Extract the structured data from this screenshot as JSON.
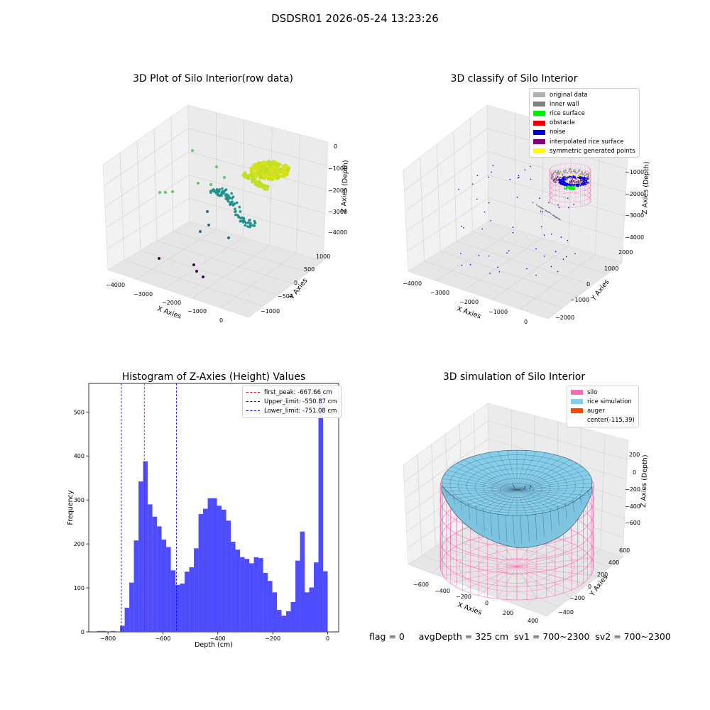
{
  "suptitle": "DSDSR01 2026-05-24 13:23:26",
  "footer": "flag = 0     avgDepth = 325 cm  sv1 = 700~2300  sv2 = 700~2300",
  "chart_data": [
    {
      "type": "scatter",
      "title": "3D Plot of Silo Interior(row data)",
      "xlabel": "X Axies",
      "ylabel": "Y Axies",
      "zlabel": "Z Axies (Depth)",
      "x_ticks": [
        "−4000",
        "−3000",
        "−2000",
        "−1000",
        "0"
      ],
      "y_ticks": [
        "−1000",
        "−500",
        "0",
        "500",
        "1000"
      ],
      "z_ticks": [
        "−4000",
        "−3000",
        "−2000",
        "−1000",
        "0"
      ],
      "colormap": "viridis"
    },
    {
      "type": "scatter",
      "title": "3D classify of Silo Interior",
      "xlabel": "X Axies",
      "ylabel": "Y Axies",
      "zlabel": "Z Axies (Depth)",
      "x_ticks": [
        "−4000",
        "−3000",
        "−2000",
        "−1000",
        "0"
      ],
      "y_ticks": [
        "−2000",
        "−1000",
        "0",
        "1000",
        "2000"
      ],
      "z_ticks": [
        "−4000",
        "−3000",
        "−2000",
        "−1000",
        "0"
      ],
      "legend": [
        {
          "label": "original data",
          "color": "#b0b0b0"
        },
        {
          "label": "inner wall",
          "color": "#808080"
        },
        {
          "label": "rice surface",
          "color": "#00ee00"
        },
        {
          "label": "obstacle",
          "color": "#ee0000"
        },
        {
          "label": "noise",
          "color": "#0000dd"
        },
        {
          "label": "interpolated rice surface",
          "color": "#800080"
        },
        {
          "label": "symmetric generated points",
          "color": "#ffff00"
        }
      ]
    },
    {
      "type": "bar",
      "title": "Histogram of Z-Axies (Height) Values",
      "xlabel": "Depth (cm)",
      "ylabel": "Frequency",
      "xlim": [
        -870,
        40
      ],
      "ylim": [
        0,
        565
      ],
      "x_ticks": [
        {
          "v": -800,
          "label": "−800"
        },
        {
          "v": -600,
          "label": "−600"
        },
        {
          "v": -400,
          "label": "−400"
        },
        {
          "v": -200,
          "label": "−200"
        },
        {
          "v": 0,
          "label": "0"
        }
      ],
      "y_ticks": [
        {
          "v": 0,
          "label": "0"
        },
        {
          "v": 100,
          "label": "100"
        },
        {
          "v": 200,
          "label": "200"
        },
        {
          "v": 300,
          "label": "300"
        },
        {
          "v": 400,
          "label": "400"
        },
        {
          "v": 500,
          "label": "500"
        }
      ],
      "bar_color": "#4d4dff",
      "bin_start": -840,
      "bin_width": 16.8,
      "values": [
        2,
        2,
        0,
        2,
        0,
        14,
        55,
        112,
        208,
        342,
        388,
        290,
        262,
        240,
        210,
        193,
        140,
        107,
        110,
        137,
        147,
        190,
        268,
        280,
        304,
        304,
        287,
        278,
        253,
        205,
        187,
        170,
        166,
        156,
        170,
        168,
        134,
        116,
        90,
        50,
        37,
        47,
        68,
        162,
        228,
        90,
        101,
        158,
        540,
        138
      ],
      "vlines": [
        {
          "x": -667.66,
          "color": "#ff0000",
          "label": "first_peak: -667.66 cm"
        },
        {
          "x": -550.87,
          "color": "#0000ff",
          "label": "Upper_limit: -550.87 cm"
        },
        {
          "x": -751.08,
          "color": "#0000ff",
          "label": "Lower_limit: -751.08 cm"
        }
      ]
    },
    {
      "type": "surface",
      "title": "3D simulation of Silo Interior",
      "xlabel": "X Axies",
      "ylabel": "Y Axies",
      "zlabel": "Z Axies (Depth)",
      "x_ticks": [
        "−600",
        "−400",
        "−200",
        "0",
        "200",
        "400"
      ],
      "y_ticks": [
        "−400",
        "−200",
        "0",
        "200",
        "400",
        "600"
      ],
      "z_ticks": [
        "−600",
        "−400",
        "−200",
        "0",
        "200"
      ],
      "legend": [
        {
          "label": "silo",
          "color": "#ff69b4"
        },
        {
          "label": "rice simulation",
          "color": "#87ceeb"
        },
        {
          "label": "auger",
          "color": "#ff4500"
        },
        {
          "label": "center(-115,39)",
          "color": ""
        }
      ]
    }
  ]
}
